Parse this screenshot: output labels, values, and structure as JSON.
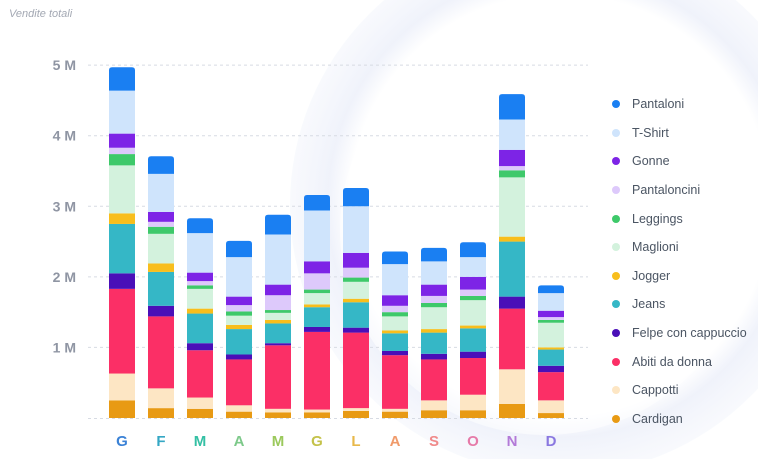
{
  "chart_data": {
    "type": "bar",
    "stacked": true,
    "title": "Vendite totali",
    "categories": [
      "G",
      "F",
      "M",
      "A",
      "M",
      "G",
      "L",
      "A",
      "S",
      "O",
      "N",
      "D"
    ],
    "category_colors": [
      "#3b82d6",
      "#35a7c4",
      "#34c0a4",
      "#7dc98a",
      "#9bc95c",
      "#c4c24a",
      "#e8b84a",
      "#f09a6a",
      "#f08a8a",
      "#e67aa8",
      "#b37ad8",
      "#8a78e0"
    ],
    "yticks": [
      {
        "value": 1000000,
        "label": "1 M"
      },
      {
        "value": 2000000,
        "label": "2 M"
      },
      {
        "value": 3000000,
        "label": "3 M"
      },
      {
        "value": 4000000,
        "label": "4 M"
      },
      {
        "value": 5000000,
        "label": "5 M"
      }
    ],
    "ylim": [
      0,
      5300000
    ],
    "grid": true,
    "legend_position": "right",
    "series": [
      {
        "name": "Cardigan",
        "color": "#e89a14",
        "values": [
          250000,
          140000,
          130000,
          90000,
          80000,
          80000,
          100000,
          90000,
          110000,
          110000,
          200000,
          70000
        ]
      },
      {
        "name": "Cappotti",
        "color": "#fde6c4",
        "values": [
          380000,
          280000,
          160000,
          90000,
          50000,
          40000,
          40000,
          40000,
          140000,
          220000,
          490000,
          180000
        ]
      },
      {
        "name": "Abiti da donna",
        "color": "#fb2f66",
        "values": [
          1200000,
          1020000,
          670000,
          650000,
          900000,
          1100000,
          1070000,
          760000,
          580000,
          520000,
          860000,
          400000
        ]
      },
      {
        "name": "Felpe con cappuccio",
        "color": "#4a0fb8",
        "values": [
          220000,
          150000,
          100000,
          70000,
          30000,
          70000,
          70000,
          60000,
          80000,
          90000,
          170000,
          90000
        ]
      },
      {
        "name": "Jeans",
        "color": "#35b7c6",
        "values": [
          700000,
          480000,
          420000,
          360000,
          280000,
          280000,
          360000,
          250000,
          300000,
          330000,
          780000,
          230000
        ]
      },
      {
        "name": "Jogger",
        "color": "#f8be1c",
        "values": [
          150000,
          120000,
          70000,
          60000,
          50000,
          40000,
          50000,
          40000,
          50000,
          40000,
          70000,
          30000
        ]
      },
      {
        "name": "Maglioni",
        "color": "#d3f2dd",
        "values": [
          680000,
          420000,
          280000,
          130000,
          100000,
          160000,
          240000,
          200000,
          310000,
          360000,
          840000,
          350000
        ]
      },
      {
        "name": "Leggings",
        "color": "#3ec96a",
        "values": [
          160000,
          100000,
          50000,
          60000,
          40000,
          50000,
          60000,
          60000,
          60000,
          60000,
          100000,
          40000
        ]
      },
      {
        "name": "Pantaloncini",
        "color": "#ddc9fb",
        "values": [
          90000,
          70000,
          60000,
          90000,
          210000,
          230000,
          140000,
          90000,
          100000,
          90000,
          60000,
          40000
        ]
      },
      {
        "name": "Gonne",
        "color": "#7d24e6",
        "values": [
          200000,
          140000,
          120000,
          120000,
          150000,
          170000,
          210000,
          150000,
          160000,
          180000,
          230000,
          90000
        ]
      },
      {
        "name": "T-Shirt",
        "color": "#cfe4fc",
        "values": [
          610000,
          540000,
          560000,
          560000,
          710000,
          720000,
          660000,
          440000,
          330000,
          280000,
          430000,
          250000
        ]
      },
      {
        "name": "Pantaloni",
        "color": "#1a7ff2",
        "values": [
          330000,
          250000,
          210000,
          230000,
          280000,
          220000,
          260000,
          180000,
          190000,
          210000,
          360000,
          110000
        ]
      }
    ]
  }
}
